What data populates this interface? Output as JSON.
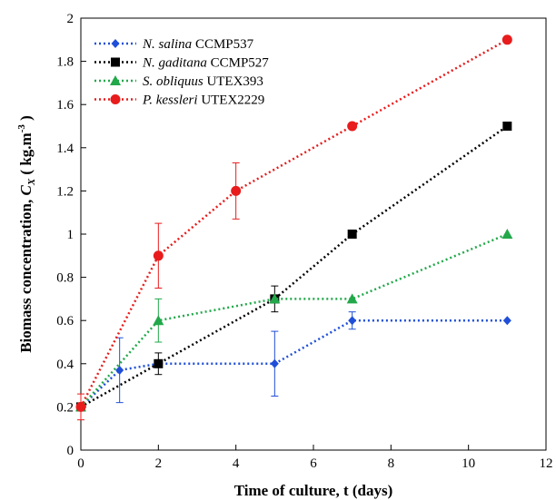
{
  "chart_data": {
    "type": "line",
    "xlabel": "Time of culture, t (days)",
    "ylabel": {
      "prefix": "Biomass concentration, ",
      "var": "C",
      "sub": "X",
      "unit_open": " ( kg.m",
      "sup": "-3",
      "unit_close": " )"
    },
    "xlim": [
      0,
      12
    ],
    "ylim": [
      0,
      2
    ],
    "xticks": [
      "0",
      "2",
      "4",
      "6",
      "8",
      "10",
      "12"
    ],
    "yticks": [
      "0",
      "0.2",
      "0.4",
      "0.6",
      "0.8",
      "1",
      "1.2",
      "1.4",
      "1.6",
      "1.8",
      "2"
    ],
    "grid": false,
    "legend_position": "top-left",
    "series": [
      {
        "name": "N. salina",
        "strain": "CCMP537",
        "color": "#1f4fd8",
        "marker": "diamond",
        "x": [
          0,
          1,
          2,
          5,
          7,
          11
        ],
        "y": [
          0.2,
          0.37,
          0.4,
          0.4,
          0.6,
          0.6
        ],
        "err": [
          0,
          0.15,
          0,
          0.15,
          0.04,
          0
        ]
      },
      {
        "name": "N. gaditana",
        "strain": "CCMP527",
        "color": "#000000",
        "marker": "square",
        "x": [
          0,
          2,
          5,
          7,
          11
        ],
        "y": [
          0.2,
          0.4,
          0.7,
          1.0,
          1.5
        ],
        "err": [
          0,
          0.05,
          0.06,
          0,
          0
        ]
      },
      {
        "name": "S. obliquus",
        "strain": "UTEX393",
        "color": "#22a84a",
        "marker": "triangle",
        "x": [
          0,
          2,
          5,
          7,
          11
        ],
        "y": [
          0.2,
          0.6,
          0.7,
          0.7,
          1.0
        ],
        "err": [
          0,
          0.1,
          0,
          0,
          0
        ]
      },
      {
        "name": "P. kessleri",
        "strain": "UTEX2229",
        "color": "#e81c1c",
        "marker": "circle",
        "x": [
          0,
          2,
          4,
          7,
          11
        ],
        "y": [
          0.2,
          0.9,
          1.2,
          1.5,
          1.9
        ],
        "err": [
          0.06,
          0.15,
          0.13,
          0,
          0
        ]
      }
    ]
  }
}
